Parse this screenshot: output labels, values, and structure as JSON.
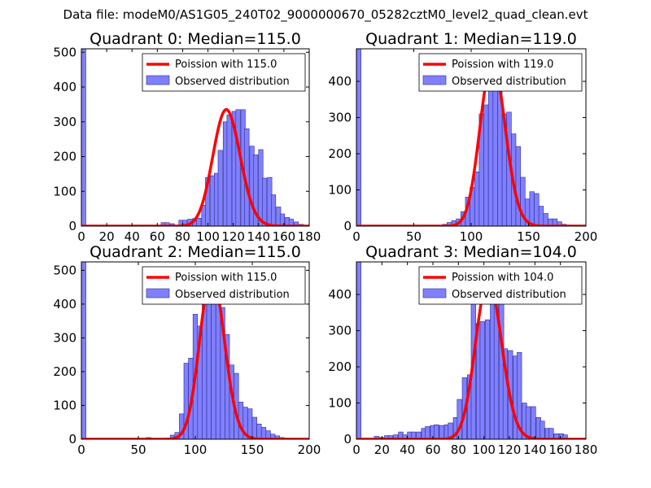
{
  "figure": {
    "suptitle": "Data file: modeM0/AS1G05_240T02_9000000670_05282cztM0_level2_quad_clean.evt"
  },
  "colors": {
    "hist_fill": "#8080ff",
    "hist_edge": "#2a2a99",
    "fit_line": "#ff0000"
  },
  "chart_data": [
    {
      "type": "bar",
      "title": "Quadrant 0: Median=115.0",
      "xlim": [
        0,
        180
      ],
      "ylim": [
        0,
        510
      ],
      "xticks": [
        0,
        20,
        40,
        60,
        80,
        100,
        120,
        140,
        160,
        180
      ],
      "yticks": [
        0,
        100,
        200,
        300,
        400,
        500
      ],
      "legend": [
        "Poission with 115.0",
        "Observed distribution"
      ],
      "legend_loc": "upper right",
      "poisson_mean": 115.0,
      "bin_width": 3.5,
      "bins": [
        [
          0,
          515
        ],
        [
          63,
          10
        ],
        [
          66,
          10
        ],
        [
          70,
          7
        ],
        [
          77,
          17
        ],
        [
          80,
          17
        ],
        [
          84,
          20
        ],
        [
          88,
          22
        ],
        [
          91,
          23
        ],
        [
          95,
          60
        ],
        [
          98,
          140
        ],
        [
          102,
          145
        ],
        [
          105,
          152
        ],
        [
          108,
          218
        ],
        [
          112,
          300
        ],
        [
          115,
          320
        ],
        [
          119,
          330
        ],
        [
          122,
          335
        ],
        [
          126,
          335
        ],
        [
          129,
          280
        ],
        [
          133,
          230
        ],
        [
          136,
          205
        ],
        [
          140,
          220
        ],
        [
          143,
          138
        ],
        [
          147,
          140
        ],
        [
          150,
          90
        ],
        [
          154,
          55
        ],
        [
          157,
          35
        ],
        [
          161,
          25
        ],
        [
          164,
          20
        ],
        [
          168,
          12
        ],
        [
          172,
          5
        ]
      ]
    },
    {
      "type": "bar",
      "title": "Quadrant 1: Median=119.0",
      "xlim": [
        0,
        200
      ],
      "ylim": [
        0,
        490
      ],
      "xticks": [
        0,
        50,
        100,
        150,
        200
      ],
      "yticks": [
        0,
        100,
        200,
        300,
        400
      ],
      "legend": [
        "Poission with 119.0",
        "Observed distribution"
      ],
      "legend_loc": "upper right",
      "poisson_mean": 119.0,
      "bin_width": 4,
      "bins": [
        [
          0,
          495
        ],
        [
          75,
          5
        ],
        [
          79,
          10
        ],
        [
          83,
          15
        ],
        [
          87,
          20
        ],
        [
          91,
          40
        ],
        [
          95,
          80
        ],
        [
          99,
          107
        ],
        [
          103,
          150
        ],
        [
          107,
          310
        ],
        [
          111,
          335
        ],
        [
          115,
          430
        ],
        [
          119,
          455
        ],
        [
          123,
          392
        ],
        [
          127,
          310
        ],
        [
          131,
          315
        ],
        [
          135,
          255
        ],
        [
          139,
          220
        ],
        [
          143,
          135
        ],
        [
          147,
          75
        ],
        [
          151,
          95
        ],
        [
          155,
          90
        ],
        [
          159,
          55
        ],
        [
          163,
          35
        ],
        [
          167,
          20
        ],
        [
          171,
          20
        ],
        [
          175,
          12
        ],
        [
          179,
          5
        ],
        [
          183,
          3
        ]
      ]
    },
    {
      "type": "bar",
      "title": "Quadrant 2: Median=115.0",
      "xlim": [
        0,
        200
      ],
      "ylim": [
        0,
        525
      ],
      "xticks": [
        0,
        50,
        100,
        150,
        200
      ],
      "yticks": [
        0,
        100,
        200,
        300,
        400,
        500
      ],
      "legend": [
        "Poission with 115.0",
        "Observed distribution"
      ],
      "legend_loc": "upper right",
      "poisson_mean": 115.0,
      "bin_width": 4,
      "bins": [
        [
          0,
          530
        ],
        [
          57,
          5
        ],
        [
          78,
          12
        ],
        [
          82,
          20
        ],
        [
          86,
          75
        ],
        [
          90,
          225
        ],
        [
          94,
          240
        ],
        [
          98,
          370
        ],
        [
          102,
          335
        ],
        [
          106,
          420
        ],
        [
          110,
          470
        ],
        [
          114,
          480
        ],
        [
          118,
          490
        ],
        [
          122,
          390
        ],
        [
          126,
          310
        ],
        [
          130,
          220
        ],
        [
          134,
          195
        ],
        [
          138,
          110
        ],
        [
          142,
          95
        ],
        [
          146,
          90
        ],
        [
          150,
          65
        ],
        [
          154,
          45
        ],
        [
          158,
          35
        ],
        [
          162,
          25
        ],
        [
          166,
          15
        ],
        [
          170,
          10
        ],
        [
          174,
          5
        ],
        [
          178,
          3
        ]
      ]
    },
    {
      "type": "bar",
      "title": "Quadrant 3: Median=104.0",
      "xlim": [
        0,
        180
      ],
      "ylim": [
        0,
        490
      ],
      "xticks": [
        0,
        20,
        40,
        60,
        80,
        100,
        120,
        140,
        160,
        180
      ],
      "yticks": [
        0,
        100,
        200,
        300,
        400
      ],
      "legend": [
        "Poission with 104.0",
        "Observed distribution"
      ],
      "legend_loc": "upper right",
      "poisson_mean": 104.0,
      "bin_width": 3.6,
      "bins": [
        [
          0,
          490
        ],
        [
          14,
          8
        ],
        [
          18,
          5
        ],
        [
          22,
          10
        ],
        [
          25,
          10
        ],
        [
          29,
          12
        ],
        [
          33,
          20
        ],
        [
          36,
          12
        ],
        [
          40,
          20
        ],
        [
          43,
          20
        ],
        [
          47,
          20
        ],
        [
          51,
          30
        ],
        [
          54,
          35
        ],
        [
          58,
          38
        ],
        [
          61,
          40
        ],
        [
          65,
          38
        ],
        [
          69,
          40
        ],
        [
          72,
          45
        ],
        [
          76,
          60
        ],
        [
          79,
          110
        ],
        [
          83,
          170
        ],
        [
          87,
          178
        ],
        [
          90,
          385
        ],
        [
          94,
          320
        ],
        [
          97,
          325
        ],
        [
          101,
          330
        ],
        [
          105,
          420
        ],
        [
          108,
          440
        ],
        [
          112,
          395
        ],
        [
          115,
          250
        ],
        [
          119,
          245
        ],
        [
          123,
          230
        ],
        [
          126,
          240
        ],
        [
          130,
          100
        ],
        [
          133,
          90
        ],
        [
          137,
          90
        ],
        [
          141,
          60
        ],
        [
          144,
          50
        ],
        [
          148,
          30
        ],
        [
          151,
          30
        ],
        [
          155,
          15
        ],
        [
          159,
          15
        ],
        [
          162,
          12
        ]
      ]
    }
  ]
}
